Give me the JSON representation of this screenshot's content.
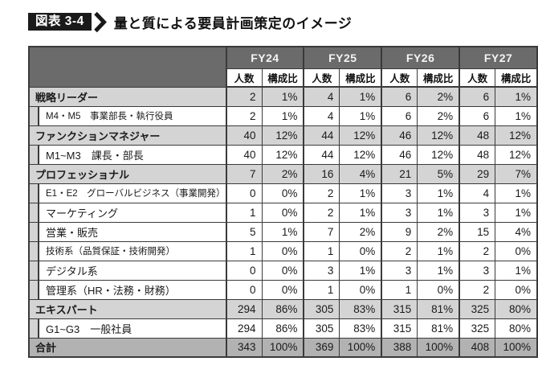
{
  "figure": {
    "label": "図表 3-4",
    "title": "量と質による要員計画策定のイメージ"
  },
  "chart_data": {
    "type": "table",
    "title": "量と質による要員計画策定のイメージ",
    "figure_label": "図表 3-4",
    "column_groups": [
      "FY24",
      "FY25",
      "FY26",
      "FY27"
    ],
    "sub_columns": [
      "人数",
      "構成比"
    ],
    "corner_label": "",
    "rows": [
      {
        "label": "戦略リーダー",
        "level": "category",
        "values": [
          "2",
          "1%",
          "4",
          "1%",
          "6",
          "2%",
          "6",
          "1%"
        ]
      },
      {
        "label": "M4・M5　事業部長・執行役員",
        "level": "sub",
        "values": [
          "2",
          "1%",
          "4",
          "1%",
          "6",
          "2%",
          "6",
          "1%"
        ]
      },
      {
        "label": "ファンクションマネジャー",
        "level": "category",
        "values": [
          "40",
          "12%",
          "44",
          "12%",
          "46",
          "12%",
          "48",
          "12%"
        ]
      },
      {
        "label": "M1~M3　課長・部長",
        "level": "sub",
        "values": [
          "40",
          "12%",
          "44",
          "12%",
          "46",
          "12%",
          "48",
          "12%"
        ]
      },
      {
        "label": "プロフェッショナル",
        "level": "category",
        "values": [
          "7",
          "2%",
          "16",
          "4%",
          "21",
          "5%",
          "29",
          "7%"
        ]
      },
      {
        "label": "E1・E2　グローバルビジネス（事業開発）",
        "level": "sub",
        "values": [
          "0",
          "0%",
          "2",
          "1%",
          "3",
          "1%",
          "4",
          "1%"
        ]
      },
      {
        "label": "マーケティング",
        "level": "sub",
        "values": [
          "1",
          "0%",
          "2",
          "1%",
          "3",
          "1%",
          "3",
          "1%"
        ]
      },
      {
        "label": "営業・販売",
        "level": "sub",
        "values": [
          "5",
          "1%",
          "7",
          "2%",
          "9",
          "2%",
          "15",
          "4%"
        ]
      },
      {
        "label": "技術系（品質保証・技術開発）",
        "level": "sub",
        "values": [
          "1",
          "0%",
          "1",
          "0%",
          "2",
          "1%",
          "2",
          "0%"
        ]
      },
      {
        "label": "デジタル系",
        "level": "sub",
        "values": [
          "0",
          "0%",
          "3",
          "1%",
          "3",
          "1%",
          "3",
          "1%"
        ]
      },
      {
        "label": "管理系（HR・法務・財務）",
        "level": "sub",
        "values": [
          "0",
          "0%",
          "1",
          "0%",
          "1",
          "0%",
          "2",
          "0%"
        ]
      },
      {
        "label": "エキスパート",
        "level": "category",
        "values": [
          "294",
          "86%",
          "305",
          "83%",
          "315",
          "81%",
          "325",
          "80%"
        ]
      },
      {
        "label": "G1~G3　一般社員",
        "level": "sub",
        "values": [
          "294",
          "86%",
          "305",
          "83%",
          "315",
          "81%",
          "325",
          "80%"
        ]
      },
      {
        "label": "合計",
        "level": "total",
        "values": [
          "343",
          "100%",
          "369",
          "100%",
          "388",
          "100%",
          "408",
          "100%"
        ]
      }
    ]
  },
  "colors": {
    "header_bg": "#6b6b6b",
    "header_text": "#f4f4f4",
    "category_row_bg": "#d4d4d4",
    "total_row_bg": "#b2b2b2",
    "border": "#3a3a3a",
    "chip_bg": "#1a1a1a",
    "chip_text": "#ffffff"
  }
}
